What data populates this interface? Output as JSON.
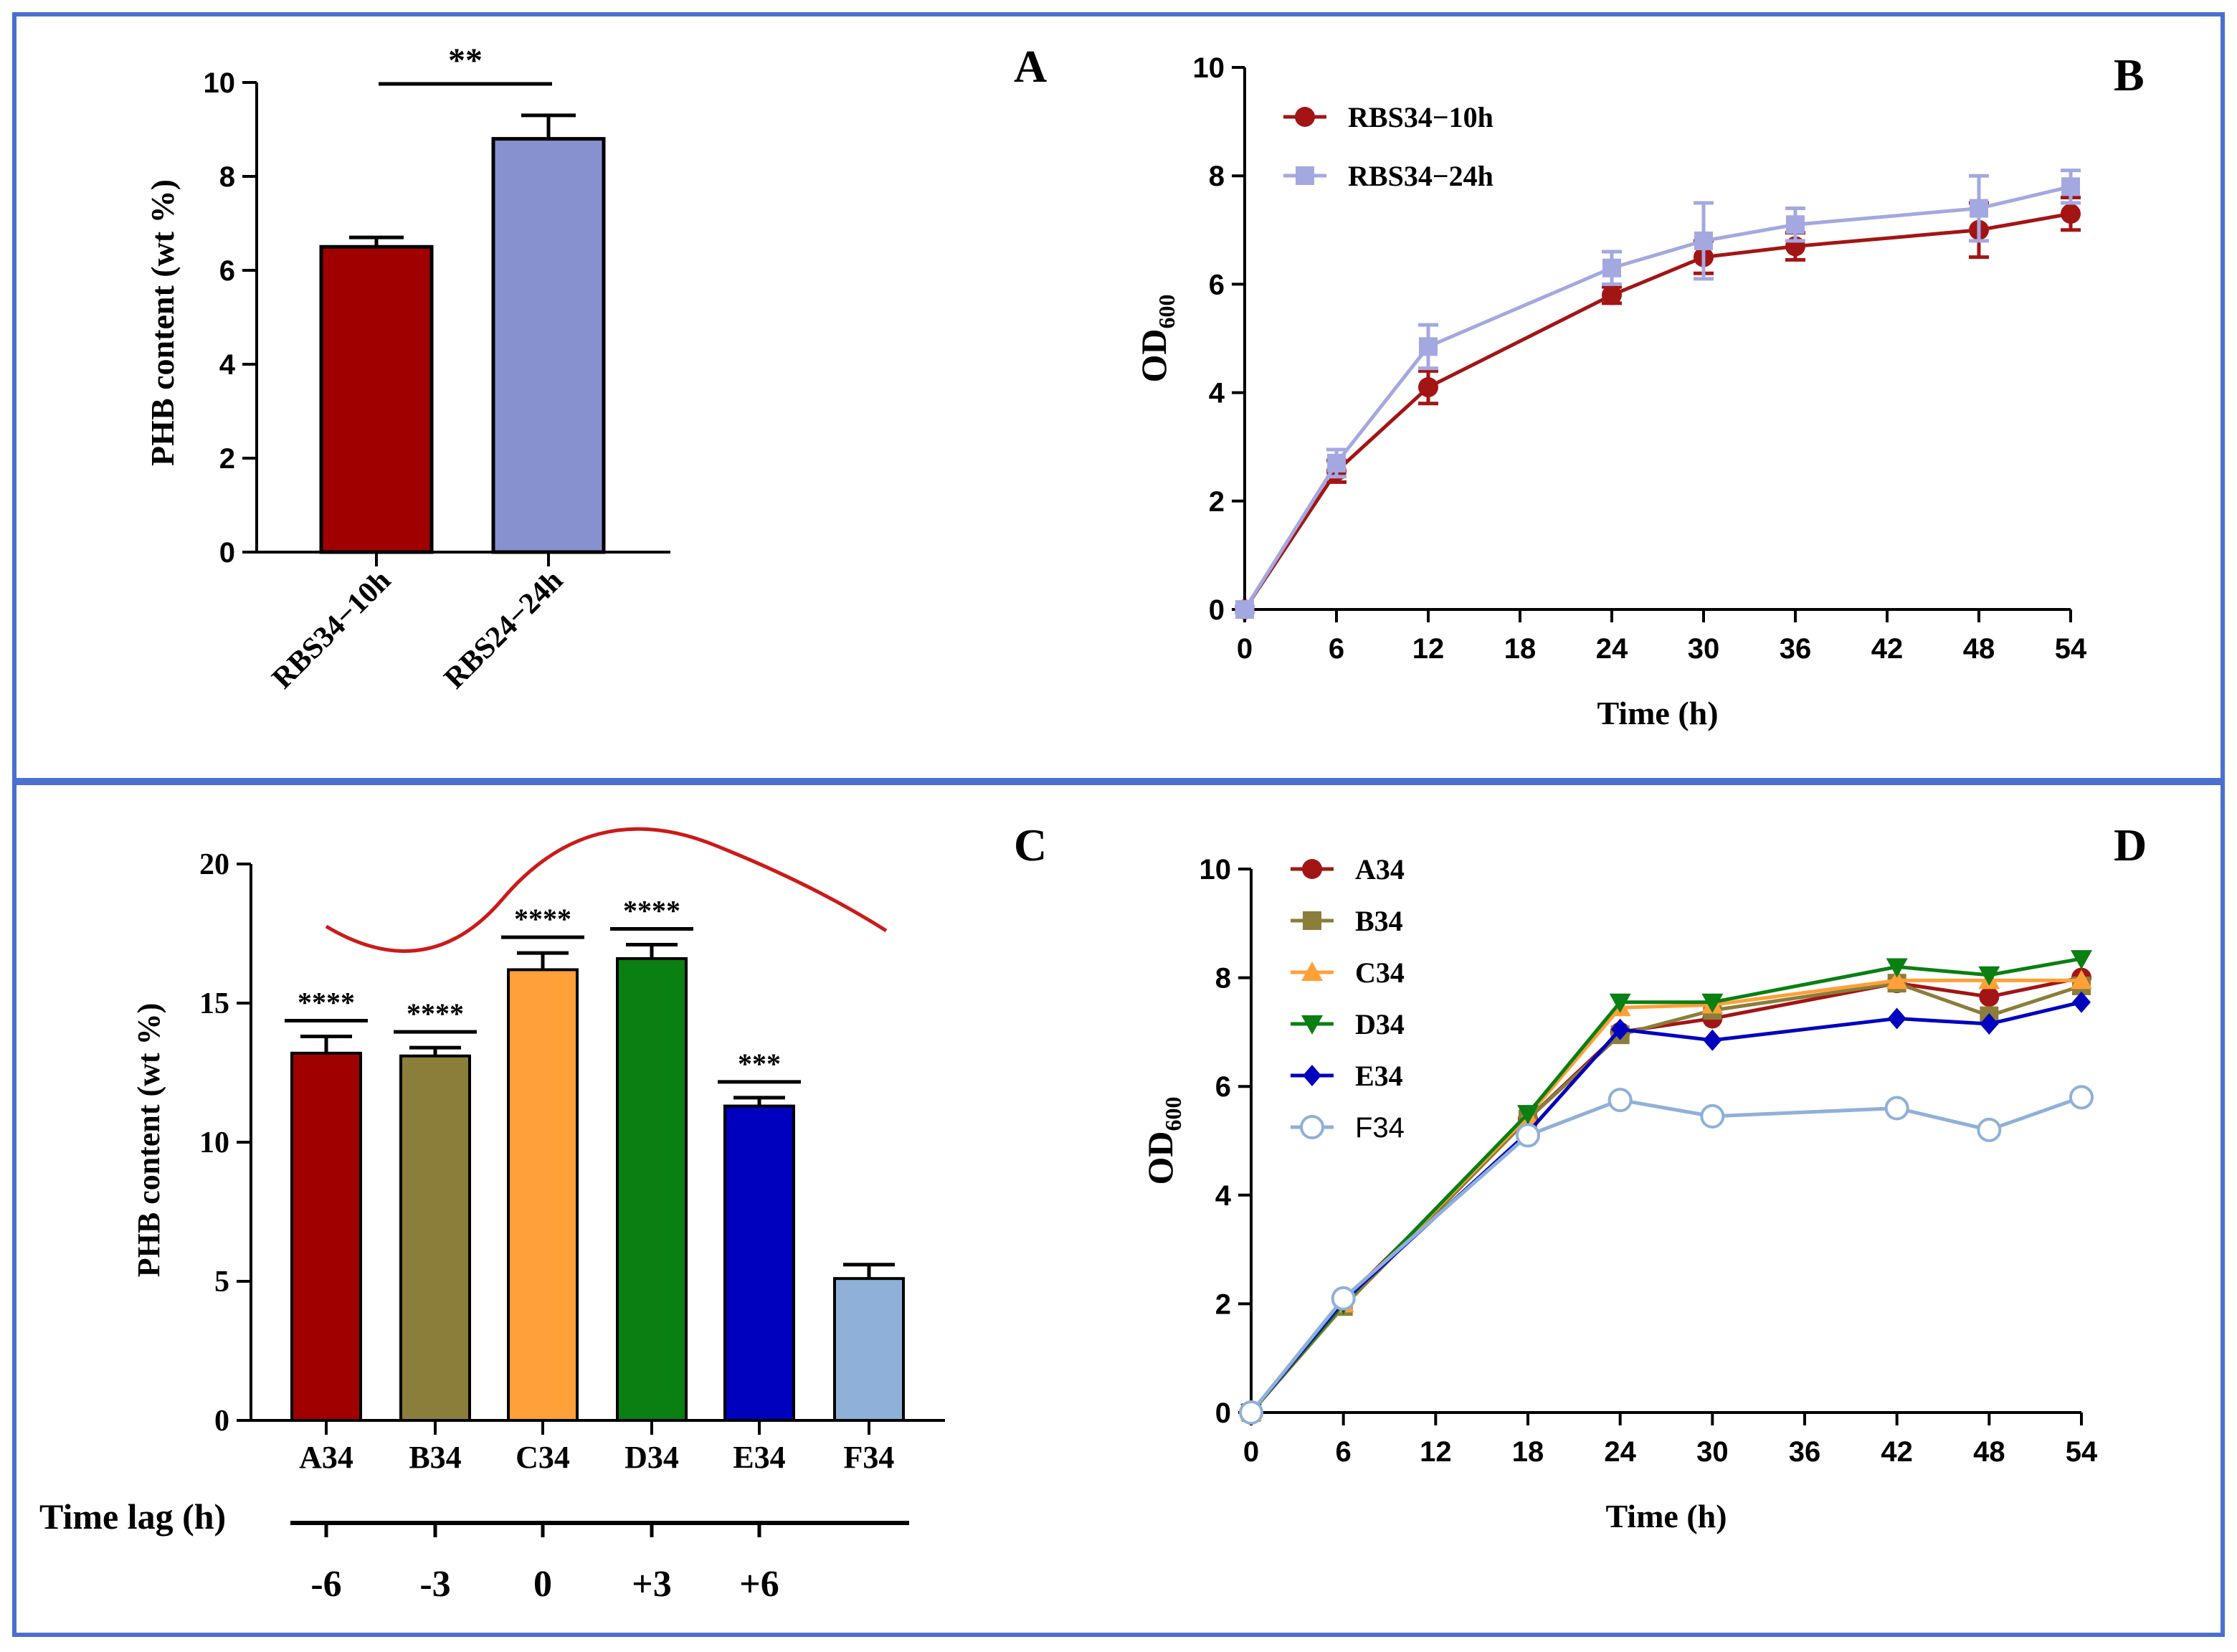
{
  "figure": {
    "panel_labels": [
      "A",
      "B",
      "C",
      "D"
    ],
    "frame_color": "#4a6fd0"
  },
  "chart_data": [
    {
      "panel": "A",
      "type": "bar",
      "ylabel": "PHB content (wt %)",
      "categories": [
        "RBS34−10h",
        "RBS24−24h"
      ],
      "values": [
        6.5,
        8.8
      ],
      "errors": [
        0.2,
        0.5
      ],
      "colors": [
        "#a00000",
        "#8891d0"
      ],
      "ylim": [
        0,
        10
      ],
      "yticks": [
        0,
        2,
        4,
        6,
        8,
        10
      ],
      "significance": [
        {
          "from": 0,
          "to": 1,
          "label": "**"
        }
      ]
    },
    {
      "panel": "B",
      "type": "line",
      "xlabel": "Time (h)",
      "ylabel": "OD",
      "ylabel_sub": "600",
      "xlim": [
        0,
        54
      ],
      "ylim": [
        0,
        10
      ],
      "xticks": [
        0,
        6,
        12,
        18,
        24,
        30,
        36,
        42,
        48,
        54
      ],
      "yticks": [
        0,
        2,
        4,
        6,
        8,
        10
      ],
      "series": [
        {
          "name": "RBS34−10h",
          "marker": "circle",
          "color": "#a31515",
          "x": [
            0,
            6,
            12,
            24,
            30,
            36,
            48,
            54
          ],
          "y": [
            0,
            2.55,
            4.1,
            5.8,
            6.5,
            6.7,
            7.0,
            7.3
          ],
          "err": [
            0.05,
            0.2,
            0.3,
            0.15,
            0.3,
            0.25,
            0.5,
            0.3
          ]
        },
        {
          "name": "RBS34−24h",
          "marker": "square",
          "color": "#a4a8e0",
          "x": [
            0,
            6,
            12,
            24,
            30,
            36,
            48,
            54
          ],
          "y": [
            0,
            2.7,
            4.85,
            6.3,
            6.8,
            7.1,
            7.4,
            7.8
          ],
          "err": [
            0.05,
            0.25,
            0.4,
            0.3,
            0.7,
            0.3,
            0.6,
            0.3
          ]
        }
      ]
    },
    {
      "panel": "C",
      "type": "bar",
      "ylabel": "PHB content (wt %)",
      "categories": [
        "A34",
        "B34",
        "C34",
        "D34",
        "E34",
        "F34"
      ],
      "values": [
        13.2,
        13.1,
        16.2,
        16.6,
        11.3,
        5.1
      ],
      "errors": [
        0.6,
        0.3,
        0.6,
        0.5,
        0.3,
        0.5
      ],
      "colors": [
        "#a00000",
        "#8b7d3a",
        "#ffa038",
        "#0a7f12",
        "#0000bf",
        "#8fb0d8"
      ],
      "ylim": [
        0,
        20
      ],
      "yticks": [
        0,
        5,
        10,
        15,
        20
      ],
      "significance_labels": [
        "****",
        "****",
        "****",
        "****",
        "***",
        ""
      ],
      "time_lag_label": "Time lag (h)",
      "time_lags": [
        "-6",
        "-3",
        "0",
        "+3",
        "+6"
      ],
      "trend_curve_color": "#cc1a1a"
    },
    {
      "panel": "D",
      "type": "line",
      "xlabel": "Time (h)",
      "ylabel": "OD",
      "ylabel_sub": "600",
      "xlim": [
        0,
        54
      ],
      "ylim": [
        0,
        10
      ],
      "xticks": [
        0,
        6,
        12,
        18,
        24,
        30,
        36,
        42,
        48,
        54
      ],
      "yticks": [
        0,
        2,
        4,
        6,
        8,
        10
      ],
      "series": [
        {
          "name": "A34",
          "marker": "circle",
          "color": "#a31515",
          "x": [
            0,
            6,
            18,
            24,
            30,
            42,
            48,
            54
          ],
          "y": [
            0,
            2.05,
            5.4,
            7.0,
            7.25,
            7.9,
            7.65,
            8.0
          ]
        },
        {
          "name": "B34",
          "marker": "square",
          "color": "#8b7d3a",
          "x": [
            0,
            6,
            18,
            24,
            30,
            42,
            48,
            54
          ],
          "y": [
            0,
            1.95,
            5.4,
            6.95,
            7.4,
            7.9,
            7.3,
            7.85
          ]
        },
        {
          "name": "C34",
          "marker": "triangle-up",
          "color": "#ffa038",
          "x": [
            0,
            6,
            18,
            24,
            30,
            42,
            48,
            54
          ],
          "y": [
            0,
            2.0,
            5.45,
            7.45,
            7.5,
            7.95,
            7.95,
            7.95
          ]
        },
        {
          "name": "D34",
          "marker": "triangle-down",
          "color": "#0a7f12",
          "x": [
            0,
            6,
            18,
            24,
            30,
            42,
            48,
            54
          ],
          "y": [
            0,
            2.0,
            5.5,
            7.55,
            7.55,
            8.2,
            8.05,
            8.35
          ]
        },
        {
          "name": "E34",
          "marker": "diamond",
          "color": "#0000bf",
          "x": [
            0,
            6,
            18,
            24,
            30,
            42,
            48,
            54
          ],
          "y": [
            0,
            2.05,
            5.15,
            7.05,
            6.85,
            7.25,
            7.15,
            7.55
          ]
        },
        {
          "name": "F34",
          "marker": "open-circle",
          "color": "#8fb0d8",
          "x": [
            0,
            6,
            18,
            24,
            30,
            42,
            48,
            54
          ],
          "y": [
            0,
            2.1,
            5.1,
            5.75,
            5.45,
            5.6,
            5.2,
            5.8
          ]
        }
      ]
    }
  ]
}
